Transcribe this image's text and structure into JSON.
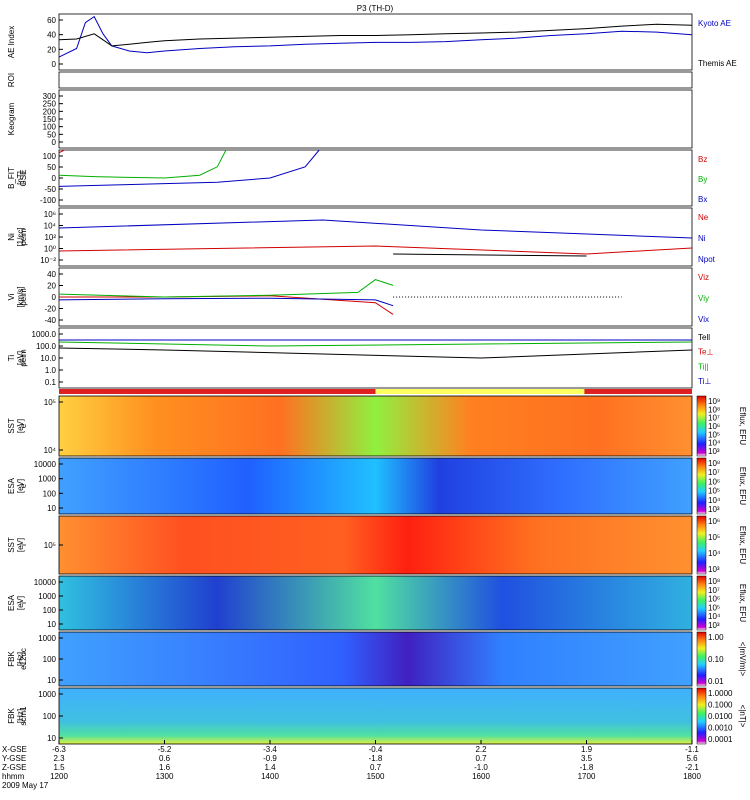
{
  "title": "P3 (TH-D)",
  "panels": [
    {
      "id": "ae",
      "ylabel": "AE Index",
      "ticks": [
        "60",
        "40",
        "20",
        "0"
      ],
      "right_labels": [
        {
          "text": "Kyoto AE",
          "color": "#0000c0"
        },
        {
          "text": "Themis AE",
          "color": "#000000"
        }
      ]
    },
    {
      "id": "roi",
      "ylabel": "ROI",
      "ticks": [],
      "right_labels": []
    },
    {
      "id": "keogram",
      "ylabel": "Keogram",
      "ticks": [
        "300",
        "250",
        "200",
        "150",
        "100",
        "50",
        "0"
      ],
      "right_labels": []
    },
    {
      "id": "bfit",
      "ylabel": "B_FIT\n[nT]",
      "sublabel": "GSE",
      "ticks": [
        "100",
        "50",
        "0",
        "-50",
        "-100"
      ],
      "right_labels": [
        {
          "text": "Bz",
          "color": "#d00000"
        },
        {
          "text": "By",
          "color": "#00b000"
        },
        {
          "text": "Bx",
          "color": "#0000c0"
        }
      ]
    },
    {
      "id": "ni",
      "ylabel": "Ni\n[1/cc]",
      "sublabel": "peim",
      "ticks": [
        "10⁶",
        "10⁴",
        "10²",
        "10⁰",
        "10⁻²"
      ],
      "right_labels": [
        {
          "text": "Ne",
          "color": "#d00000"
        },
        {
          "text": "Ni",
          "color": "#0000c0"
        },
        {
          "text": "Npot",
          "color": "#0000c0"
        }
      ]
    },
    {
      "id": "vi",
      "ylabel": "Vi\n[km/s]",
      "sublabel": "peim",
      "ticks": [
        "40",
        "20",
        "0",
        "-20",
        "-40"
      ],
      "right_labels": [
        {
          "text": "Viz",
          "color": "#d00000"
        },
        {
          "text": "Viy",
          "color": "#00b000"
        },
        {
          "text": "Vix",
          "color": "#0000c0"
        }
      ]
    },
    {
      "id": "ti",
      "ylabel": "Ti\n[eV]",
      "sublabel": "peim",
      "ticks": [
        "1000.0",
        "100.0",
        "10.0",
        "1.0",
        "0.1"
      ],
      "right_labels": [
        {
          "text": "Tell",
          "color": "#000000"
        },
        {
          "text": "Te⊥",
          "color": "#d00000"
        },
        {
          "text": "Ti||",
          "color": "#00b000"
        },
        {
          "text": "Ti⊥",
          "color": "#0000c0"
        }
      ]
    },
    {
      "id": "sst_e",
      "ylabel": "SST\n[eV]",
      "sublabel": "e",
      "ticks": [
        "10⁵",
        "10⁴"
      ],
      "right_labels": [],
      "cbar": {
        "label": "Eflux, EFU",
        "ticks": [
          "10⁹",
          "10⁸",
          "10⁷",
          "10⁶",
          "10⁵",
          "10⁴",
          "10³"
        ]
      }
    },
    {
      "id": "esa_e",
      "ylabel": "ESA\n[eV]",
      "sublabel": "e",
      "ticks": [
        "10000",
        "1000",
        "100",
        "10"
      ],
      "right_labels": [],
      "cbar": {
        "label": "Eflux, EFU",
        "ticks": [
          "10⁸",
          "10⁷",
          "10⁶",
          "10⁵",
          "10⁴",
          "10³"
        ]
      }
    },
    {
      "id": "sst_i",
      "ylabel": "SST\n[eV]",
      "sublabel": "i",
      "ticks": [
        "10⁵"
      ],
      "right_labels": [],
      "cbar": {
        "label": "Eflux, EFU",
        "ticks": [
          "10⁶",
          "10⁵",
          "10⁴",
          "10³"
        ]
      }
    },
    {
      "id": "esa_i",
      "ylabel": "ESA\n[eV]",
      "sublabel": "i",
      "ticks": [
        "10000",
        "1000",
        "100",
        "10"
      ],
      "right_labels": [],
      "cbar": {
        "label": "Eflux, EFU",
        "ticks": [
          "10⁸",
          "10⁷",
          "10⁶",
          "10⁵",
          "10⁴",
          "10³"
        ]
      }
    },
    {
      "id": "fbk_e12",
      "ylabel": "FBK\n[Hz]",
      "sublabel": "e12dc",
      "ticks": [
        "1000",
        "100",
        "10"
      ],
      "right_labels": [],
      "cbar": {
        "label": "<|mV/m|>",
        "ticks": [
          "1.00",
          "0.10",
          "0.01"
        ]
      }
    },
    {
      "id": "fbk_scm",
      "ylabel": "FBK\n[Hz]",
      "sublabel": "scm1",
      "ticks": [
        "1000",
        "100",
        "10"
      ],
      "right_labels": [],
      "cbar": {
        "label": "<|nT|>",
        "ticks": [
          "1.0000",
          "0.1000",
          "0.0100",
          "0.0010",
          "0.0001"
        ]
      }
    }
  ],
  "xaxis": {
    "row_labels": [
      "X-GSE",
      "Y-GSE",
      "Z-GSE",
      "hhmm",
      "2009 May 17"
    ],
    "columns": [
      {
        "x": "-6.3",
        "y": "2.3",
        "z": "1.5",
        "t": "1200"
      },
      {
        "x": "-5.2",
        "y": "0.6",
        "z": "1.6",
        "t": "1300"
      },
      {
        "x": "-3.4",
        "y": "-0.9",
        "z": "1.4",
        "t": "1400"
      },
      {
        "x": "-0.4",
        "y": "-1.8",
        "z": "0.7",
        "t": "1500"
      },
      {
        "x": "2.2",
        "y": "0.7",
        "z": "-1.0",
        "t": "1600"
      },
      {
        "x": "1.9",
        "y": "3.5",
        "z": "-1.8",
        "t": "1700"
      },
      {
        "x": "-1.1",
        "y": "5.6",
        "z": "-2.1",
        "t": "1800"
      }
    ]
  },
  "chart_data": [
    {
      "type": "line",
      "panel": "AE Index",
      "x_unit": "hhmm",
      "ylim": [
        0,
        65
      ],
      "series": [
        {
          "name": "Kyoto AE",
          "color": "#0000c0",
          "x": [
            1200,
            1210,
            1215,
            1220,
            1225,
            1230,
            1240,
            1250,
            1300,
            1320,
            1340,
            1400,
            1420,
            1440,
            1500,
            1520,
            1540,
            1600,
            1620,
            1640,
            1700,
            1720,
            1740,
            1800
          ],
          "y": [
            15,
            25,
            55,
            62,
            42,
            28,
            22,
            20,
            22,
            25,
            27,
            28,
            30,
            31,
            32,
            32,
            33,
            35,
            37,
            40,
            42,
            45,
            44,
            41
          ]
        },
        {
          "name": "Themis AE",
          "color": "#000000",
          "x": [
            1200,
            1210,
            1220,
            1225,
            1230,
            1240,
            1250,
            1300,
            1320,
            1340,
            1400,
            1420,
            1440,
            1500,
            1520,
            1540,
            1600,
            1620,
            1640,
            1700,
            1720,
            1740,
            1800
          ],
          "y": [
            35,
            36,
            42,
            35,
            28,
            30,
            32,
            34,
            36,
            37,
            38,
            39,
            40,
            40,
            41,
            42,
            43,
            44,
            46,
            48,
            51,
            53,
            52
          ]
        }
      ]
    },
    {
      "type": "line",
      "panel": "B_FIT GSE",
      "x_unit": "hhmm",
      "ylim": [
        -100,
        100
      ],
      "series": [
        {
          "name": "Bz",
          "color": "#d00000",
          "x": [
            1200,
            1203
          ],
          "y": [
            90,
            100
          ]
        },
        {
          "name": "By",
          "color": "#00b000",
          "x": [
            1200,
            1220,
            1240,
            1300,
            1320,
            1330,
            1335
          ],
          "y": [
            10,
            5,
            2,
            0,
            10,
            40,
            100
          ]
        },
        {
          "name": "Bx",
          "color": "#0000c0",
          "x": [
            1200,
            1230,
            1300,
            1330,
            1400,
            1420,
            1428
          ],
          "y": [
            -30,
            -25,
            -20,
            -15,
            0,
            40,
            100
          ]
        }
      ]
    },
    {
      "type": "line",
      "panel": "Vi peim",
      "x_unit": "hhmm",
      "ylim": [
        -50,
        50
      ],
      "series": [
        {
          "name": "Viz",
          "color": "#d00000",
          "x": [
            1200,
            1300,
            1400,
            1500,
            1510
          ],
          "y": [
            0,
            0,
            2,
            -10,
            -30
          ]
        },
        {
          "name": "Viy",
          "color": "#00b000",
          "x": [
            1200,
            1300,
            1400,
            1450,
            1500,
            1510
          ],
          "y": [
            5,
            0,
            3,
            8,
            30,
            20
          ]
        },
        {
          "name": "Vix",
          "color": "#0000c0",
          "x": [
            1200,
            1300,
            1400,
            1500,
            1510
          ],
          "y": [
            -5,
            -3,
            -2,
            -5,
            -15
          ]
        }
      ]
    },
    {
      "type": "heatmap",
      "panel": "SST e",
      "colorbar": "Eflux, EFU"
    },
    {
      "type": "heatmap",
      "panel": "ESA e",
      "colorbar": "Eflux, EFU"
    },
    {
      "type": "heatmap",
      "panel": "SST i",
      "colorbar": "Eflux, EFU"
    },
    {
      "type": "heatmap",
      "panel": "ESA i",
      "colorbar": "Eflux, EFU"
    },
    {
      "type": "heatmap",
      "panel": "FBK e12dc",
      "colorbar": "<|mV/m|>"
    },
    {
      "type": "heatmap",
      "panel": "FBK scm1",
      "colorbar": "<|nT|>"
    }
  ]
}
